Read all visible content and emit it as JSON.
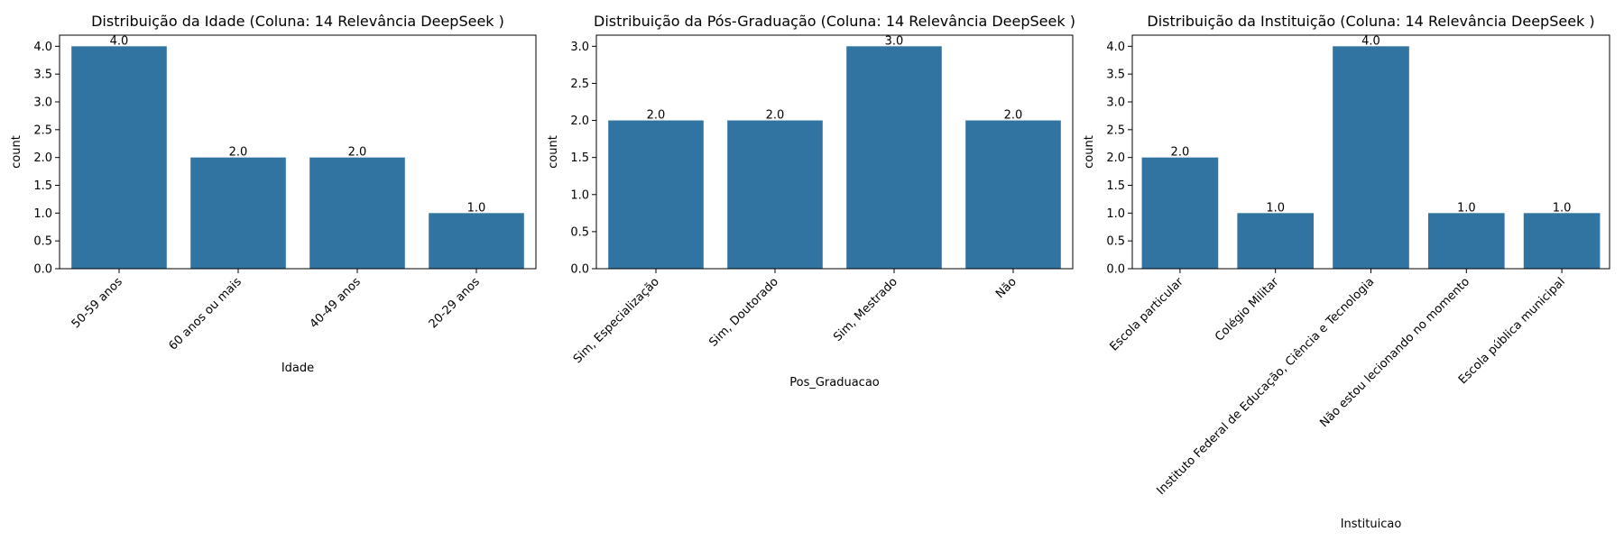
{
  "chart_data": [
    {
      "type": "bar",
      "title": "Distribuição da Idade (Coluna: 14 Relevância DeepSeek )",
      "xlabel": "Idade",
      "ylabel": "count",
      "categories": [
        "50-59 anos",
        "60 anos ou mais",
        "40-49 anos",
        "20-29 anos"
      ],
      "values": [
        4,
        2,
        2,
        1
      ],
      "data_labels": [
        "4.0",
        "2.0",
        "2.0",
        "1.0"
      ],
      "ylim": [
        0,
        4.2
      ],
      "yticks": [
        "0.0",
        "0.5",
        "1.0",
        "1.5",
        "2.0",
        "2.5",
        "3.0",
        "3.5",
        "4.0"
      ],
      "bar_color": "#3274a1",
      "grid": false
    },
    {
      "type": "bar",
      "title": "Distribuição da Pós-Graduação (Coluna: 14 Relevância DeepSeek )",
      "xlabel": "Pos_Graduacao",
      "ylabel": "count",
      "categories": [
        "Sim, Especialização",
        "Sim, Doutorado",
        "Sim, Mestrado",
        "Não"
      ],
      "values": [
        2,
        2,
        3,
        2
      ],
      "data_labels": [
        "2.0",
        "2.0",
        "3.0",
        "2.0"
      ],
      "ylim": [
        0,
        3.15
      ],
      "yticks": [
        "0.0",
        "0.5",
        "1.0",
        "1.5",
        "2.0",
        "2.5",
        "3.0"
      ],
      "bar_color": "#3274a1",
      "grid": false
    },
    {
      "type": "bar",
      "title": "Distribuição da Instituição (Coluna: 14 Relevância DeepSeek )",
      "xlabel": "Instituicao",
      "ylabel": "count",
      "categories": [
        "Escola particular",
        "Colégio Militar",
        "Instituto Federal de Educação, Ciência e Tecnologia",
        "Não estou lecionando no momento",
        "Escola pública municipal"
      ],
      "values": [
        2,
        1,
        4,
        1,
        1
      ],
      "data_labels": [
        "2.0",
        "1.0",
        "4.0",
        "1.0",
        "1.0"
      ],
      "ylim": [
        0,
        4.2
      ],
      "yticks": [
        "0.0",
        "0.5",
        "1.0",
        "1.5",
        "2.0",
        "2.5",
        "3.0",
        "3.5",
        "4.0"
      ],
      "bar_color": "#3274a1",
      "grid": false
    }
  ]
}
